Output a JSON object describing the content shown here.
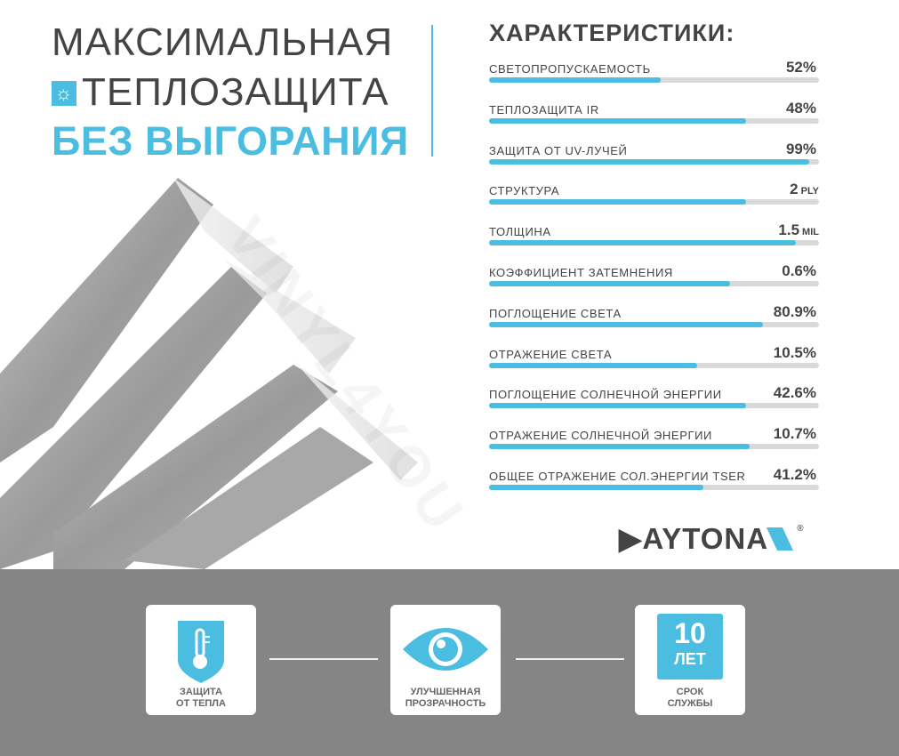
{
  "header": {
    "line1": "МАКСИМАЛЬНАЯ",
    "line2": "ТЕПЛОЗАЩИТА",
    "line3": "БЕЗ ВЫГОРАНИЯ",
    "line2_icon": "sun-icon"
  },
  "specs": {
    "title": "ХАРАКТЕРИСТИКИ:",
    "items": [
      {
        "label": "СВЕТОПРОПУСКАЕМОСТЬ",
        "value": "52%",
        "unit": "",
        "fill": 0.52
      },
      {
        "label": "ТЕПЛОЗАЩИТА IR",
        "value": "48%",
        "unit": "",
        "fill": 0.78
      },
      {
        "label": "ЗАЩИТА ОТ UV-ЛУЧЕЙ",
        "value": "99%",
        "unit": "",
        "fill": 0.97
      },
      {
        "label": "СТРУКТУРА",
        "value": "2",
        "unit": "PLY",
        "fill": 0.78
      },
      {
        "label": "ТОЛЩИНА",
        "value": "1.5",
        "unit": "MIL",
        "fill": 0.93
      },
      {
        "label": "КОЭФФИЦИЕНТ ЗАТЕМНЕНИЯ",
        "value": "0.6%",
        "unit": "",
        "fill": 0.73
      },
      {
        "label": "ПОГЛОЩЕНИЕ СВЕТА",
        "value": "80.9%",
        "unit": "",
        "fill": 0.83
      },
      {
        "label": "ОТРАЖЕНИЕ СВЕТА",
        "value": "10.5%",
        "unit": "",
        "fill": 0.63
      },
      {
        "label": "ПОГЛОЩЕНИЕ СОЛНЕЧНОЙ ЭНЕРГИИ",
        "value": "42.6%",
        "unit": "",
        "fill": 0.78
      },
      {
        "label": "ОТРАЖЕНИЕ СОЛНЕЧНОЙ ЭНЕРГИИ",
        "value": "10.7%",
        "unit": "",
        "fill": 0.79
      },
      {
        "label": "ОБЩЕЕ ОТРАЖЕНИЕ СОЛ.ЭНЕРГИИ TSER",
        "value": "41.2%",
        "unit": "",
        "fill": 0.65
      }
    ]
  },
  "brand": {
    "logo": "DAYTONA",
    "registered": "®"
  },
  "watermark": "VINYL4YOU",
  "features": [
    {
      "icon": "thermometer-shield-icon",
      "line1": "ЗАЩИТА",
      "line2": "ОТ ТЕПЛА"
    },
    {
      "icon": "eye-icon",
      "line1": "УЛУЧШЕННАЯ",
      "line2": "ПРОЗРАЧНОСТЬ"
    },
    {
      "icon": "ten-years-badge-icon",
      "badge_num": "10",
      "badge_unit": "ЛЕТ",
      "line1": "СРОК",
      "line2": "СЛУЖБЫ"
    }
  ],
  "colors": {
    "accent": "#4bbde0",
    "text": "#444444",
    "bottom_bg": "#858585",
    "track": "#d9d9d9"
  }
}
